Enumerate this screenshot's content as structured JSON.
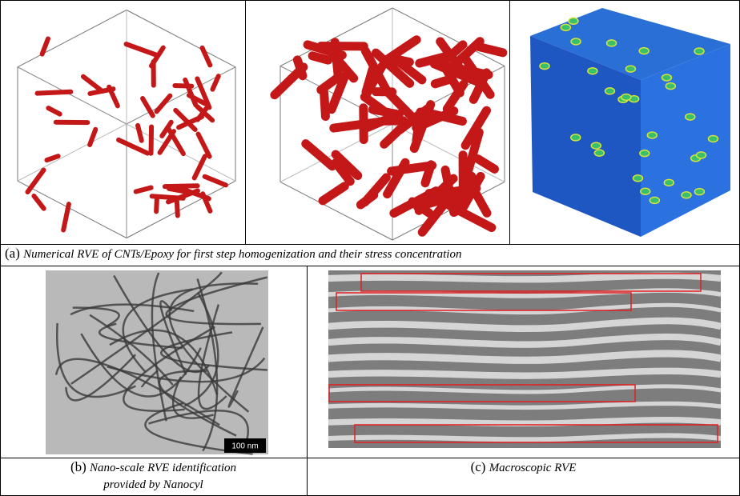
{
  "figure": {
    "a": {
      "label": "(a)",
      "caption": "Numerical RVE of CNTs/Epoxy for first step homogenization and their stress concentration"
    },
    "b": {
      "label": "(b)",
      "caption": "Nano-scale RVE identification provided by Nanocyl",
      "scale_bar": "100 nm"
    },
    "c": {
      "label": "(c)",
      "caption": "Macroscopic RVE"
    }
  }
}
